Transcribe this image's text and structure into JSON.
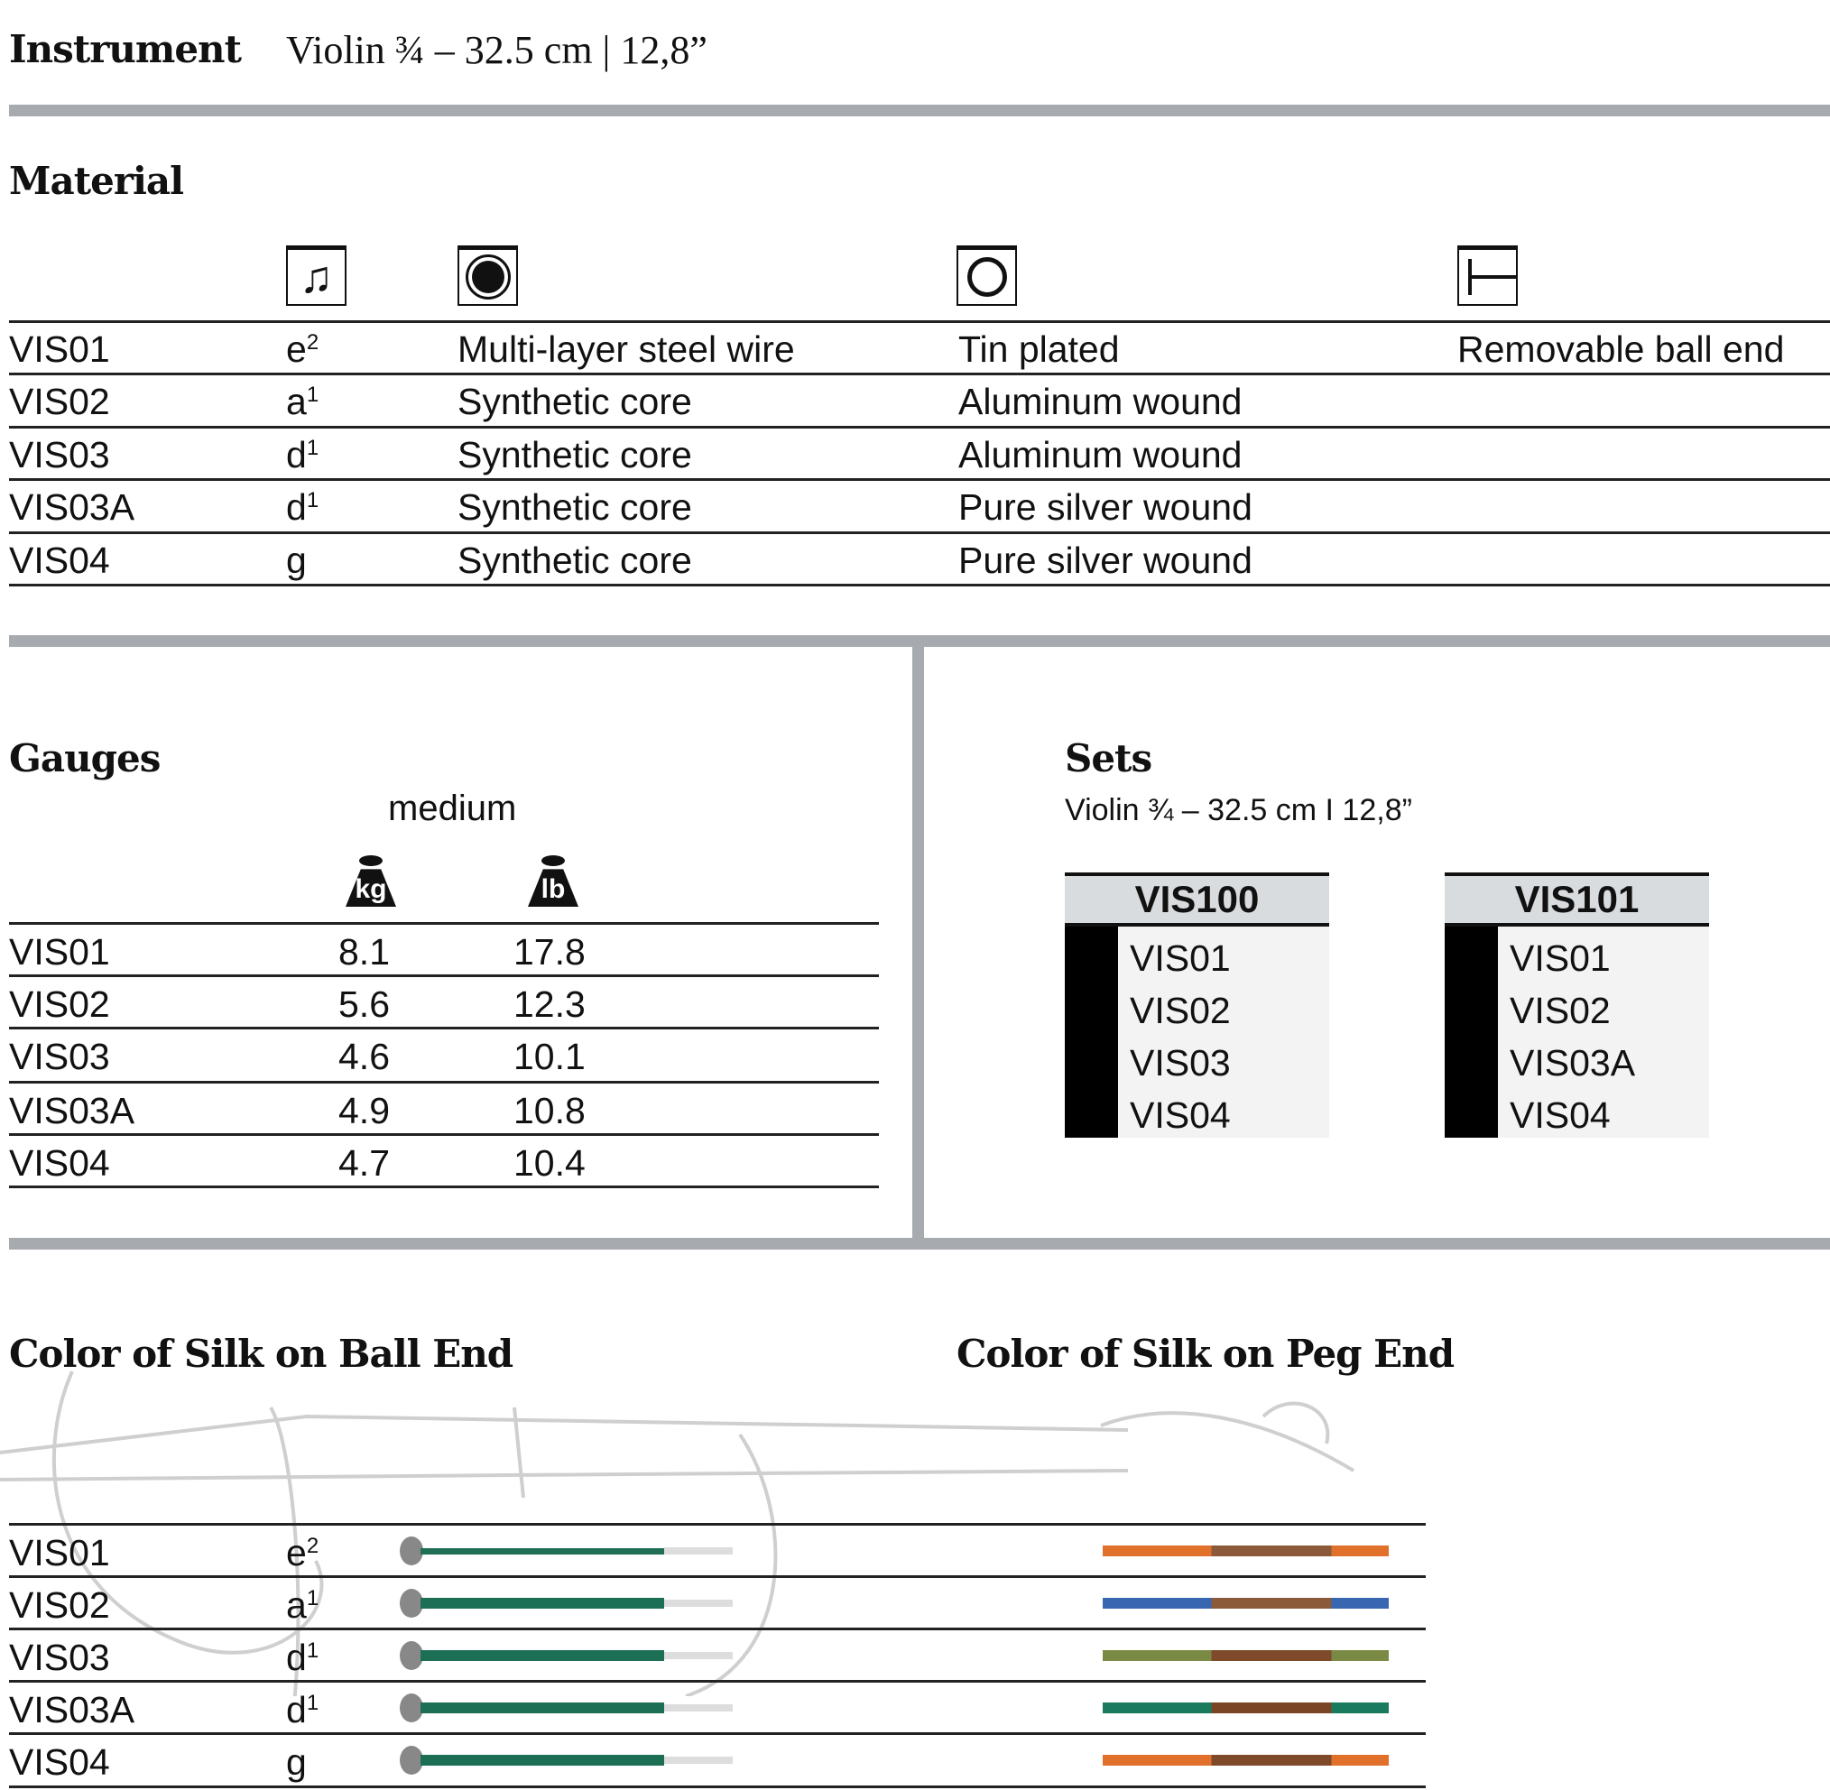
{
  "instrument": {
    "label": "Instrument",
    "value": "Violin ¾ – 32.5 cm | 12,8”"
  },
  "material": {
    "heading": "Material",
    "icons": [
      "note-icon",
      "core-icon",
      "winding-icon",
      "ball-end-icon"
    ],
    "rows": [
      {
        "id": "VIS01",
        "note": "e",
        "sup": "2",
        "core": "Multi-layer steel wire",
        "winding": "Tin plated",
        "end": "Removable ball end"
      },
      {
        "id": "VIS02",
        "note": "a",
        "sup": "1",
        "core": "Synthetic core",
        "winding": "Aluminum wound",
        "end": ""
      },
      {
        "id": "VIS03",
        "note": "d",
        "sup": "1",
        "core": "Synthetic core",
        "winding": "Aluminum wound",
        "end": ""
      },
      {
        "id": "VIS03A",
        "note": "d",
        "sup": "1",
        "core": "Synthetic core",
        "winding": "Pure silver wound",
        "end": ""
      },
      {
        "id": "VIS04",
        "note": "g",
        "sup": "",
        "core": "Synthetic core",
        "winding": "Pure silver wound",
        "end": ""
      }
    ]
  },
  "gauges": {
    "heading": "Gauges",
    "tension": "medium",
    "kg_label": "kg",
    "lb_label": "lb",
    "rows": [
      {
        "id": "VIS01",
        "kg": "8.1",
        "lb": "17.8"
      },
      {
        "id": "VIS02",
        "kg": "5.6",
        "lb": "12.3"
      },
      {
        "id": "VIS03",
        "kg": "4.6",
        "lb": "10.1"
      },
      {
        "id": "VIS03A",
        "kg": "4.9",
        "lb": "10.8"
      },
      {
        "id": "VIS04",
        "kg": "4.7",
        "lb": "10.4"
      }
    ]
  },
  "sets": {
    "heading": "Sets",
    "subtitle": "Violin ¾ – 32.5 cm I 12,8”",
    "items": [
      {
        "name": "VIS100",
        "strings": [
          "VIS01",
          "VIS02",
          "VIS03",
          "VIS04"
        ]
      },
      {
        "name": "VIS101",
        "strings": [
          "VIS01",
          "VIS02",
          "VIS03A",
          "VIS04"
        ]
      }
    ]
  },
  "silk": {
    "ball_heading": "Color of Silk on Ball End",
    "peg_heading": "Color of Silk on Peg End",
    "rows": [
      {
        "id": "VIS01",
        "note": "e",
        "sup": "2",
        "ball": "#1f6e55",
        "peg": "#e0702a",
        "peg_mid": "#8a5a3a"
      },
      {
        "id": "VIS02",
        "note": "a",
        "sup": "1",
        "ball": "#1c6e55",
        "peg": "#3866b0",
        "peg_mid": "#8a5a3a"
      },
      {
        "id": "VIS03",
        "note": "d",
        "sup": "1",
        "ball": "#1c6e55",
        "peg": "#7a8a45",
        "peg_mid": "#7f4a2a"
      },
      {
        "id": "VIS03A",
        "note": "d",
        "sup": "1",
        "ball": "#1c6e55",
        "peg": "#1a7a5e",
        "peg_mid": "#7a4525"
      },
      {
        "id": "VIS04",
        "note": "g",
        "sup": "",
        "ball": "#1c6e55",
        "peg": "#e0702a",
        "peg_mid": "#7f4a2a"
      }
    ]
  }
}
